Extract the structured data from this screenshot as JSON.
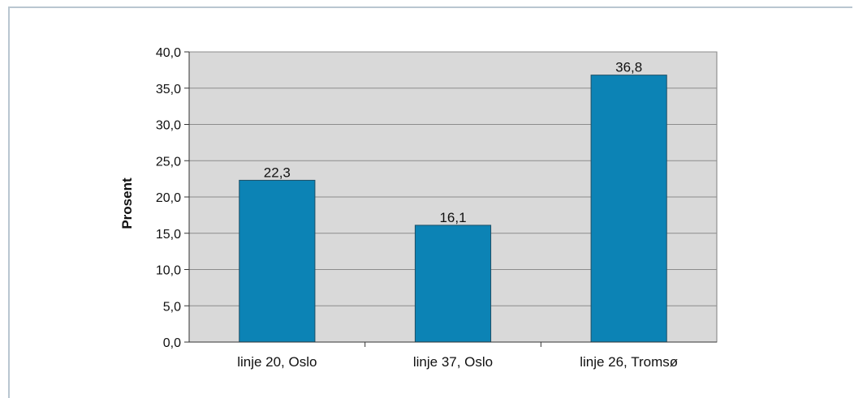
{
  "chart_data": {
    "type": "bar",
    "categories": [
      "linje 20, Oslo",
      "linje 37, Oslo",
      "linje 26, Tromsø"
    ],
    "values": [
      22.3,
      16.1,
      36.8
    ],
    "value_labels": [
      "22,3",
      "16,1",
      "36,8"
    ],
    "title": "",
    "xlabel": "",
    "ylabel": "Prosent",
    "ylim": [
      0,
      40
    ],
    "yticks": [
      0,
      5,
      10,
      15,
      20,
      25,
      30,
      35,
      40
    ],
    "ytick_labels": [
      "0,0",
      "5,0",
      "10,0",
      "15,0",
      "20,0",
      "25,0",
      "30,0",
      "35,0",
      "40,0"
    ],
    "grid": true,
    "colors": {
      "bar": "#0c83b5",
      "plot_background": "#d9d9d9",
      "gridline": "#8c8c8c"
    }
  }
}
